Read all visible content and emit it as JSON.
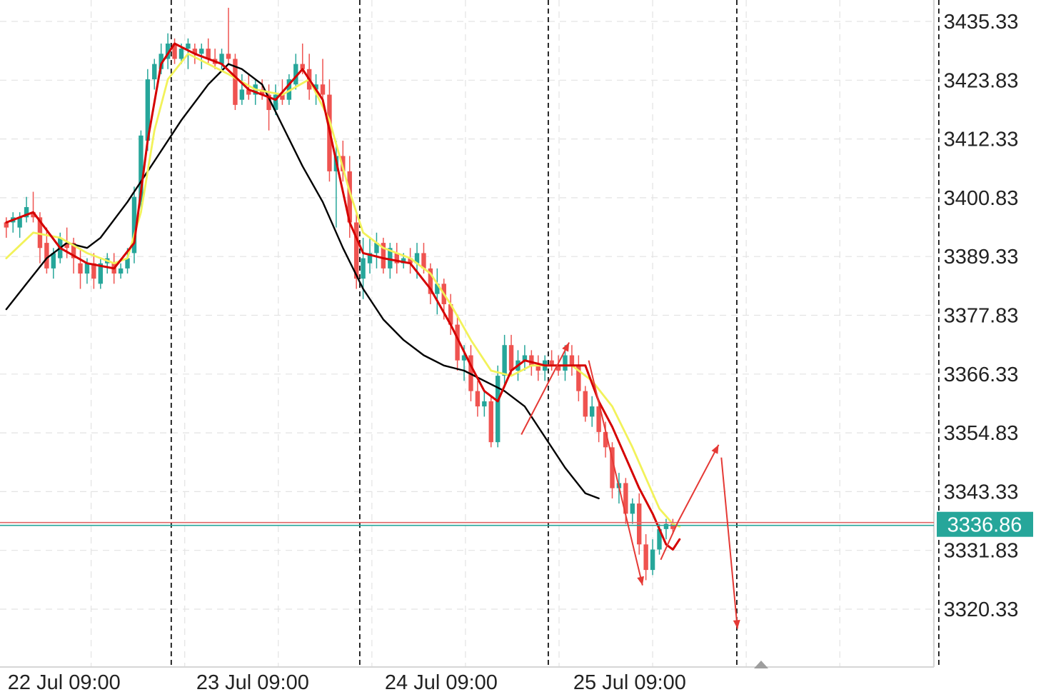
{
  "chart_data": {
    "type": "candlestick",
    "y_axis": {
      "ticks": [
        "3435.33",
        "3423.83",
        "3412.33",
        "3400.83",
        "3389.33",
        "3377.83",
        "3366.33",
        "3354.83",
        "3343.33",
        "3331.83",
        "3320.33"
      ],
      "range": [
        3309.5,
        3438.5
      ]
    },
    "x_axis": {
      "labels": [
        {
          "text": "22 Jul 09:00",
          "bar": 0
        },
        {
          "text": "23 Jul 09:00",
          "bar": 28
        },
        {
          "text": "24 Jul 09:00",
          "bar": 56
        },
        {
          "text": "25 Jul 09:00",
          "bar": 84
        }
      ]
    },
    "session_separators_bar": [
      24.5,
      52.5,
      80.5,
      108.5,
      138.5
    ],
    "current_price": "3336.86",
    "current_price_color": "#26a69a",
    "colors": {
      "up": "#26a69a",
      "down": "#ef5350",
      "ma_fast": "#d50000",
      "ma_mid": "#f2f25a",
      "ma_slow": "#000000",
      "grid": "#e3e3e3",
      "bid_line": "#e06666",
      "ask_line": "#26a69a"
    },
    "candles": [
      [
        3396,
        3397,
        3393,
        3395
      ],
      [
        3396,
        3398,
        3394,
        3397
      ],
      [
        3395,
        3398,
        3393,
        3397
      ],
      [
        3397,
        3401,
        3396,
        3399
      ],
      [
        3398,
        3402,
        3396,
        3397
      ],
      [
        3397,
        3398,
        3388,
        3391
      ],
      [
        3392,
        3395,
        3386,
        3387
      ],
      [
        3387,
        3391,
        3385,
        3390
      ],
      [
        3389,
        3394,
        3388,
        3393
      ],
      [
        3392,
        3395,
        3389,
        3391
      ],
      [
        3392,
        3393,
        3386,
        3389
      ],
      [
        3388,
        3391,
        3383,
        3386
      ],
      [
        3386,
        3389,
        3384,
        3388
      ],
      [
        3388,
        3390,
        3383,
        3385
      ],
      [
        3384,
        3389,
        3383,
        3388
      ],
      [
        3388,
        3390,
        3386,
        3389
      ],
      [
        3388,
        3390,
        3384,
        3386
      ],
      [
        3386,
        3388,
        3385,
        3387
      ],
      [
        3387,
        3391,
        3386,
        3389
      ],
      [
        3390,
        3403,
        3388,
        3401
      ],
      [
        3400,
        3414,
        3398,
        3413
      ],
      [
        3412,
        3426,
        3410,
        3424
      ],
      [
        3424,
        3428,
        3422,
        3427
      ],
      [
        3426,
        3431,
        3425,
        3429
      ],
      [
        3428,
        3433,
        3426,
        3431
      ],
      [
        3431,
        3432,
        3427,
        3428
      ],
      [
        3428,
        3431,
        3427,
        3430
      ],
      [
        3430,
        3432,
        3426,
        3431
      ],
      [
        3430,
        3431,
        3427,
        3429
      ],
      [
        3429,
        3431,
        3426,
        3430
      ],
      [
        3430,
        3432,
        3427,
        3428
      ],
      [
        3428,
        3430,
        3426,
        3427
      ],
      [
        3427,
        3430,
        3426,
        3429
      ],
      [
        3429,
        3438,
        3427,
        3428
      ],
      [
        3428,
        3429,
        3418,
        3419
      ],
      [
        3420,
        3425,
        3419,
        3422
      ],
      [
        3422,
        3425,
        3420,
        3421
      ],
      [
        3421,
        3424,
        3419,
        3423
      ],
      [
        3422,
        3424,
        3420,
        3421
      ],
      [
        3421,
        3423,
        3414,
        3418
      ],
      [
        3418,
        3423,
        3417,
        3421
      ],
      [
        3421,
        3424,
        3419,
        3420
      ],
      [
        3420,
        3425,
        3419,
        3424
      ],
      [
        3423,
        3429,
        3422,
        3427
      ],
      [
        3427,
        3431,
        3425,
        3426
      ],
      [
        3426,
        3429,
        3420,
        3422
      ],
      [
        3422,
        3425,
        3419,
        3423
      ],
      [
        3423,
        3428,
        3420,
        3421
      ],
      [
        3421,
        3424,
        3404,
        3406
      ],
      [
        3406,
        3412,
        3395,
        3409
      ],
      [
        3409,
        3412,
        3404,
        3406
      ],
      [
        3406,
        3409,
        3393,
        3396
      ],
      [
        3396,
        3398,
        3383,
        3385
      ],
      [
        3385,
        3393,
        3381,
        3389
      ],
      [
        3388,
        3393,
        3386,
        3390
      ],
      [
        3390,
        3394,
        3387,
        3392
      ],
      [
        3392,
        3393,
        3386,
        3387
      ],
      [
        3387,
        3392,
        3385,
        3391
      ],
      [
        3390,
        3392,
        3386,
        3388
      ],
      [
        3388,
        3390,
        3387,
        3389
      ],
      [
        3389,
        3391,
        3386,
        3388
      ],
      [
        3388,
        3392,
        3385,
        3390
      ],
      [
        3390,
        3392,
        3386,
        3387
      ],
      [
        3387,
        3388,
        3380,
        3382
      ],
      [
        3382,
        3387,
        3378,
        3384
      ],
      [
        3384,
        3385,
        3377,
        3380
      ],
      [
        3380,
        3382,
        3374,
        3376
      ],
      [
        3376,
        3378,
        3367,
        3369
      ],
      [
        3369,
        3372,
        3365,
        3370
      ],
      [
        3370,
        3372,
        3361,
        3363
      ],
      [
        3363,
        3365,
        3358,
        3360
      ],
      [
        3360,
        3363,
        3358,
        3361
      ],
      [
        3361,
        3362,
        3352,
        3353
      ],
      [
        3353,
        3368,
        3352,
        3366
      ],
      [
        3366,
        3374,
        3364,
        3372
      ],
      [
        3372,
        3374,
        3366,
        3367
      ],
      [
        3367,
        3371,
        3365,
        3369
      ],
      [
        3369,
        3372,
        3367,
        3370
      ],
      [
        3370,
        3371,
        3366,
        3368
      ],
      [
        3368,
        3370,
        3365,
        3367
      ],
      [
        3367,
        3370,
        3365,
        3369
      ],
      [
        3369,
        3371,
        3367,
        3368
      ],
      [
        3368,
        3370,
        3366,
        3367
      ],
      [
        3367,
        3372,
        3365,
        3370
      ],
      [
        3370,
        3372,
        3366,
        3368
      ],
      [
        3368,
        3370,
        3361,
        3363
      ],
      [
        3363,
        3364,
        3357,
        3358
      ],
      [
        3358,
        3362,
        3356,
        3360
      ],
      [
        3360,
        3361,
        3353,
        3355
      ],
      [
        3355,
        3357,
        3350,
        3352
      ],
      [
        3352,
        3353,
        3342,
        3344
      ],
      [
        3344,
        3347,
        3341,
        3345
      ],
      [
        3345,
        3346,
        3337,
        3339
      ],
      [
        3339,
        3342,
        3337,
        3341
      ],
      [
        3341,
        3343,
        3331,
        3333
      ],
      [
        3333,
        3335,
        3326,
        3328
      ],
      [
        3328,
        3334,
        3327,
        3332
      ],
      [
        3332,
        3337,
        3331,
        3336
      ],
      [
        3336,
        3338,
        3334,
        3337
      ],
      [
        3337,
        3338,
        3335,
        3336
      ]
    ],
    "ma_fast": [
      [
        0,
        3396
      ],
      [
        4,
        3398
      ],
      [
        8,
        3391
      ],
      [
        12,
        3388
      ],
      [
        16,
        3387
      ],
      [
        19,
        3392
      ],
      [
        21,
        3412
      ],
      [
        23,
        3427
      ],
      [
        25,
        3431
      ],
      [
        28,
        3429
      ],
      [
        32,
        3427
      ],
      [
        36,
        3422
      ],
      [
        40,
        3420
      ],
      [
        44,
        3426
      ],
      [
        47,
        3420
      ],
      [
        49,
        3408
      ],
      [
        51,
        3396
      ],
      [
        53,
        3390
      ],
      [
        56,
        3389
      ],
      [
        60,
        3388
      ],
      [
        63,
        3383
      ],
      [
        66,
        3376
      ],
      [
        69,
        3368
      ],
      [
        71,
        3363
      ],
      [
        73,
        3361
      ],
      [
        75,
        3367
      ],
      [
        77,
        3369
      ],
      [
        80,
        3368
      ],
      [
        83,
        3368
      ],
      [
        86,
        3368
      ],
      [
        88,
        3361
      ],
      [
        90,
        3356
      ],
      [
        92,
        3350
      ],
      [
        94,
        3344
      ],
      [
        96,
        3339
      ],
      [
        98,
        3333
      ],
      [
        99,
        3332
      ],
      [
        100,
        3334
      ]
    ],
    "ma_mid": [
      [
        0,
        3389
      ],
      [
        4,
        3394
      ],
      [
        8,
        3393
      ],
      [
        12,
        3390
      ],
      [
        16,
        3388
      ],
      [
        18,
        3389
      ],
      [
        20,
        3398
      ],
      [
        22,
        3414
      ],
      [
        24,
        3424
      ],
      [
        27,
        3429
      ],
      [
        30,
        3427
      ],
      [
        33,
        3425
      ],
      [
        37,
        3422
      ],
      [
        41,
        3421
      ],
      [
        45,
        3424
      ],
      [
        48,
        3416
      ],
      [
        51,
        3402
      ],
      [
        53,
        3394
      ],
      [
        56,
        3391
      ],
      [
        60,
        3389
      ],
      [
        63,
        3386
      ],
      [
        66,
        3380
      ],
      [
        69,
        3373
      ],
      [
        72,
        3367
      ],
      [
        75,
        3366
      ],
      [
        78,
        3368
      ],
      [
        81,
        3368
      ],
      [
        84,
        3368
      ],
      [
        87,
        3365
      ],
      [
        90,
        3360
      ],
      [
        93,
        3352
      ],
      [
        95,
        3346
      ],
      [
        97,
        3340
      ],
      [
        99,
        3337
      ],
      [
        100,
        3336.5
      ]
    ],
    "ma_slow": [
      [
        0,
        3379
      ],
      [
        3,
        3384
      ],
      [
        6,
        3389
      ],
      [
        9,
        3392
      ],
      [
        12,
        3391
      ],
      [
        14,
        3393
      ],
      [
        18,
        3400
      ],
      [
        22,
        3408
      ],
      [
        26,
        3416
      ],
      [
        30,
        3423
      ],
      [
        33,
        3427
      ],
      [
        35,
        3426
      ],
      [
        38,
        3423
      ],
      [
        41,
        3415
      ],
      [
        44,
        3407
      ],
      [
        47,
        3400
      ],
      [
        50,
        3391
      ],
      [
        53,
        3383
      ],
      [
        56,
        3377
      ],
      [
        59,
        3373
      ],
      [
        62,
        3370
      ],
      [
        65,
        3368
      ],
      [
        68,
        3367
      ],
      [
        71,
        3365
      ],
      [
        74,
        3363
      ],
      [
        77,
        3360
      ],
      [
        80,
        3354
      ],
      [
        83,
        3348
      ],
      [
        86,
        3343
      ],
      [
        88,
        3342
      ]
    ],
    "annotations": [
      {
        "type": "arrow",
        "points": [
          [
            76.5,
            3354.5
          ],
          [
            83.6,
            3372.5
          ]
        ],
        "color": "#e53935"
      },
      {
        "type": "arrow",
        "points": [
          [
            86.5,
            3369
          ],
          [
            94.5,
            3325
          ]
        ],
        "color": "#e53935"
      },
      {
        "type": "arrow",
        "points": [
          [
            97.2,
            3330
          ],
          [
            99.8,
            3337.5
          ],
          [
            105.8,
            3352.5
          ]
        ],
        "color": "#e53935"
      },
      {
        "type": "arrow",
        "points": [
          [
            106.2,
            3350
          ],
          [
            108.6,
            3316.5
          ]
        ],
        "color": "#e53935"
      }
    ]
  }
}
